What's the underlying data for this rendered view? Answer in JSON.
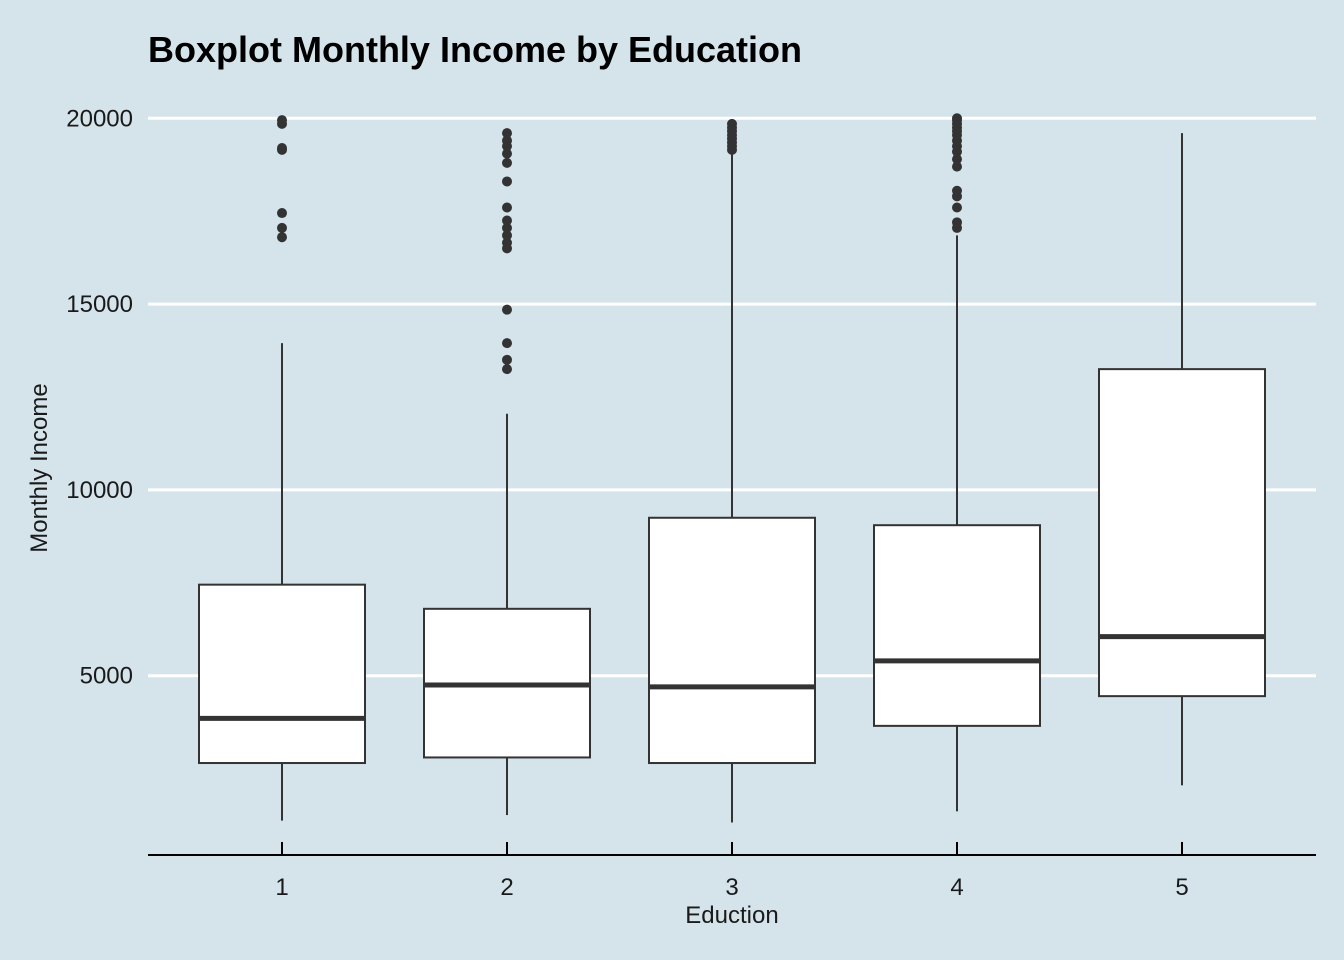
{
  "chart_data": {
    "type": "boxplot",
    "title": "Boxplot Monthly Income by  Education",
    "xlabel": "Eduction",
    "ylabel": "Monthly Income",
    "categories": [
      "1",
      "2",
      "3",
      "4",
      "5"
    ],
    "y_ticks": [
      5000,
      10000,
      15000,
      20000
    ],
    "ylim": [
      0,
      20000
    ],
    "grid": "horizontal major lines",
    "colors": {
      "background": "#d5e4eb",
      "grid": "#ffffff",
      "box_fill": "#ffffff",
      "stroke": "#333333",
      "outlier": "#333333"
    },
    "boxes": [
      {
        "category": "1",
        "whisker_low": 1100,
        "q1": 2650,
        "median": 3850,
        "q3": 7450,
        "whisker_high": 13950,
        "outliers": [
          16800,
          17050,
          17450,
          19150,
          19200,
          19850,
          19950
        ]
      },
      {
        "category": "2",
        "whisker_low": 1250,
        "q1": 2800,
        "median": 4750,
        "q3": 6800,
        "whisker_high": 12050,
        "outliers": [
          13250,
          13500,
          13950,
          14850,
          16500,
          16650,
          16850,
          17050,
          17250,
          17600,
          18300,
          18800,
          19050,
          19250,
          19400,
          19600
        ]
      },
      {
        "category": "3",
        "whisker_low": 1050,
        "q1": 2650,
        "median": 4700,
        "q3": 9250,
        "whisker_high": 19050,
        "outliers": [
          19150,
          19250,
          19350,
          19450,
          19550,
          19650,
          19750,
          19850
        ]
      },
      {
        "category": "4",
        "whisker_low": 1350,
        "q1": 3650,
        "median": 5400,
        "q3": 9050,
        "whisker_high": 16850,
        "outliers": [
          17050,
          17200,
          17600,
          17900,
          18050,
          18700,
          18900,
          19100,
          19250,
          19400,
          19550,
          19650,
          19750,
          19850,
          19950,
          20000
        ]
      },
      {
        "category": "5",
        "whisker_low": 2050,
        "q1": 4450,
        "median": 6050,
        "q3": 13250,
        "whisker_high": 19600,
        "outliers": []
      }
    ]
  }
}
